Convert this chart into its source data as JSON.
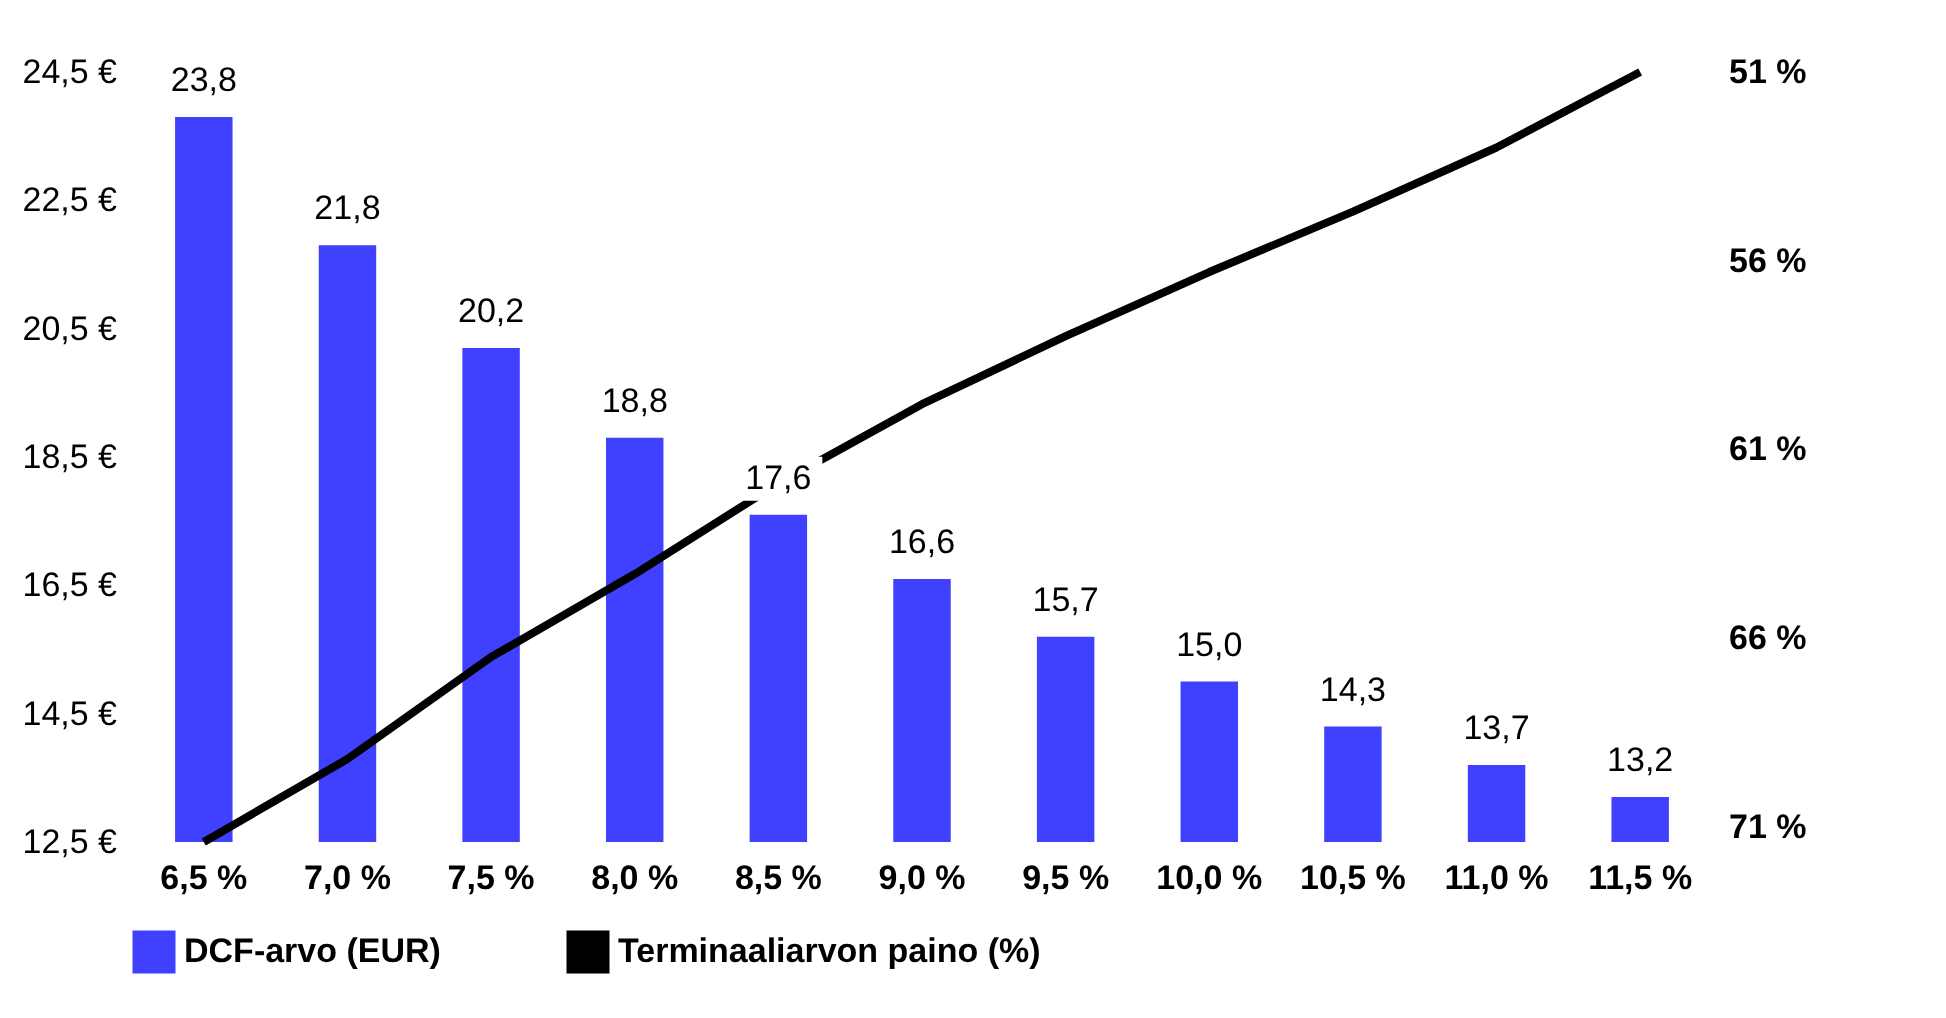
{
  "chart_data": {
    "type": "bar",
    "categories": [
      "6,5 %",
      "7,0 %",
      "7,5 %",
      "8,0 %",
      "8,5 %",
      "9,0 %",
      "9,5 %",
      "10,0 %",
      "10,5 %",
      "11,0 %",
      "11,5 %"
    ],
    "series": [
      {
        "name": "DCF-arvo (EUR)",
        "color": "#4040ff",
        "values": [
          23.8,
          21.8,
          20.2,
          18.8,
          17.6,
          16.6,
          15.7,
          15.0,
          14.3,
          13.7,
          13.2
        ],
        "value_labels": [
          "23,8",
          "21,8",
          "20,2",
          "18,8",
          "17,6",
          "16,6",
          "15,7",
          "15,0",
          "14,3",
          "13,7",
          "13,2"
        ]
      },
      {
        "name": "Terminaaliarvon paino (%)",
        "type": "line",
        "axis": "y2",
        "color": "#000000",
        "values": [
          71.4,
          69.2,
          66.5,
          64.3,
          61.9,
          59.8,
          58.0,
          56.3,
          54.7,
          53.0,
          51.0
        ]
      }
    ],
    "ylim": [
      12.5,
      24.5
    ],
    "yticks": [
      {
        "value": 12.5,
        "label": "12,5 €"
      },
      {
        "value": 14.5,
        "label": "14,5 €"
      },
      {
        "value": 16.5,
        "label": "16,5 €"
      },
      {
        "value": 18.5,
        "label": "18,5 €"
      },
      {
        "value": 20.5,
        "label": "20,5 €"
      },
      {
        "value": 22.5,
        "label": "22,5 €"
      },
      {
        "value": 24.5,
        "label": "24,5 €"
      }
    ],
    "y2lim": [
      71.4,
      51.0
    ],
    "y2ticks": [
      {
        "value": 71,
        "label": "71 %"
      },
      {
        "value": 66,
        "label": "66 %"
      },
      {
        "value": 61,
        "label": "61 %"
      },
      {
        "value": 56,
        "label": "56 %"
      },
      {
        "value": 51,
        "label": "51 %"
      }
    ],
    "grid": false,
    "legend": "bottom",
    "marker": "none",
    "line_style": "solid"
  }
}
